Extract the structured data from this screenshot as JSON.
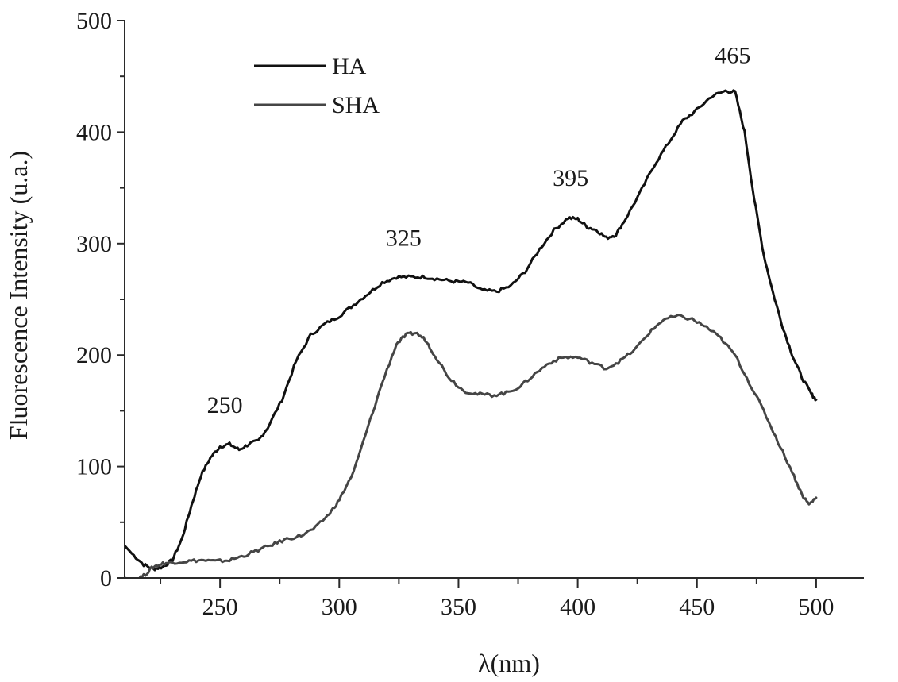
{
  "chart_data": {
    "type": "line",
    "title": "",
    "xlabel": "λ(nm)",
    "ylabel": "Fluorescence Intensity (u.a.)",
    "xlim": [
      210,
      520
    ],
    "ylim": [
      0,
      500
    ],
    "xticks": [
      250,
      300,
      350,
      400,
      450,
      500
    ],
    "xticks_minor": [
      225,
      275,
      325,
      375,
      425,
      475
    ],
    "yticks": [
      0,
      100,
      200,
      300,
      400,
      500
    ],
    "yticks_minor": [
      50,
      150,
      250,
      350,
      450
    ],
    "grid": false,
    "legend": "top-left",
    "series": [
      {
        "name": "HA",
        "color": "#111111",
        "x": [
          210,
          213,
          218,
          222,
          226,
          230,
          234,
          238,
          242,
          246,
          250,
          254,
          258,
          262,
          266,
          270,
          276,
          282,
          288,
          294,
          300,
          306,
          312,
          318,
          324,
          330,
          336,
          342,
          348,
          354,
          360,
          366,
          372,
          378,
          384,
          390,
          396,
          400,
          404,
          408,
          412,
          416,
          420,
          426,
          432,
          438,
          444,
          450,
          456,
          462,
          466,
          470,
          474,
          478,
          482,
          486,
          490,
          494,
          498,
          500
        ],
        "y": [
          29,
          22,
          12,
          8,
          10,
          16,
          35,
          65,
          92,
          108,
          118,
          120,
          115,
          120,
          123,
          135,
          160,
          195,
          218,
          228,
          235,
          245,
          255,
          265,
          270,
          270,
          270,
          268,
          266,
          265,
          258,
          257,
          262,
          275,
          295,
          312,
          323,
          322,
          315,
          312,
          305,
          308,
          322,
          345,
          370,
          390,
          410,
          420,
          432,
          437,
          436,
          400,
          340,
          290,
          255,
          225,
          200,
          180,
          165,
          160
        ]
      },
      {
        "name": "SHA",
        "color": "#454545",
        "x": [
          210,
          214,
          218,
          222,
          226,
          230,
          236,
          242,
          248,
          254,
          260,
          266,
          272,
          278,
          284,
          290,
          296,
          300,
          306,
          312,
          318,
          324,
          328,
          332,
          336,
          340,
          346,
          352,
          358,
          364,
          370,
          376,
          382,
          388,
          394,
          400,
          406,
          412,
          418,
          424,
          430,
          436,
          442,
          448,
          454,
          460,
          466,
          472,
          478,
          484,
          490,
          494,
          497,
          500
        ],
        "y": [
          0,
          -2,
          2,
          10,
          13,
          14,
          15,
          16,
          15,
          16,
          20,
          25,
          30,
          35,
          38,
          45,
          58,
          70,
          95,
          135,
          175,
          210,
          218,
          220,
          214,
          200,
          180,
          168,
          165,
          164,
          166,
          172,
          183,
          193,
          198,
          198,
          193,
          188,
          195,
          205,
          220,
          232,
          235,
          232,
          225,
          215,
          200,
          175,
          150,
          122,
          95,
          75,
          66,
          72
        ]
      }
    ],
    "annotations": [
      {
        "text": "250",
        "x": 252,
        "y": 148
      },
      {
        "text": "325",
        "x": 327,
        "y": 298
      },
      {
        "text": "395",
        "x": 397,
        "y": 352
      },
      {
        "text": "465",
        "x": 465,
        "y": 462
      }
    ]
  },
  "legend_items": [
    {
      "label": "HA",
      "color": "#111111"
    },
    {
      "label": "SHA",
      "color": "#454545"
    }
  ]
}
